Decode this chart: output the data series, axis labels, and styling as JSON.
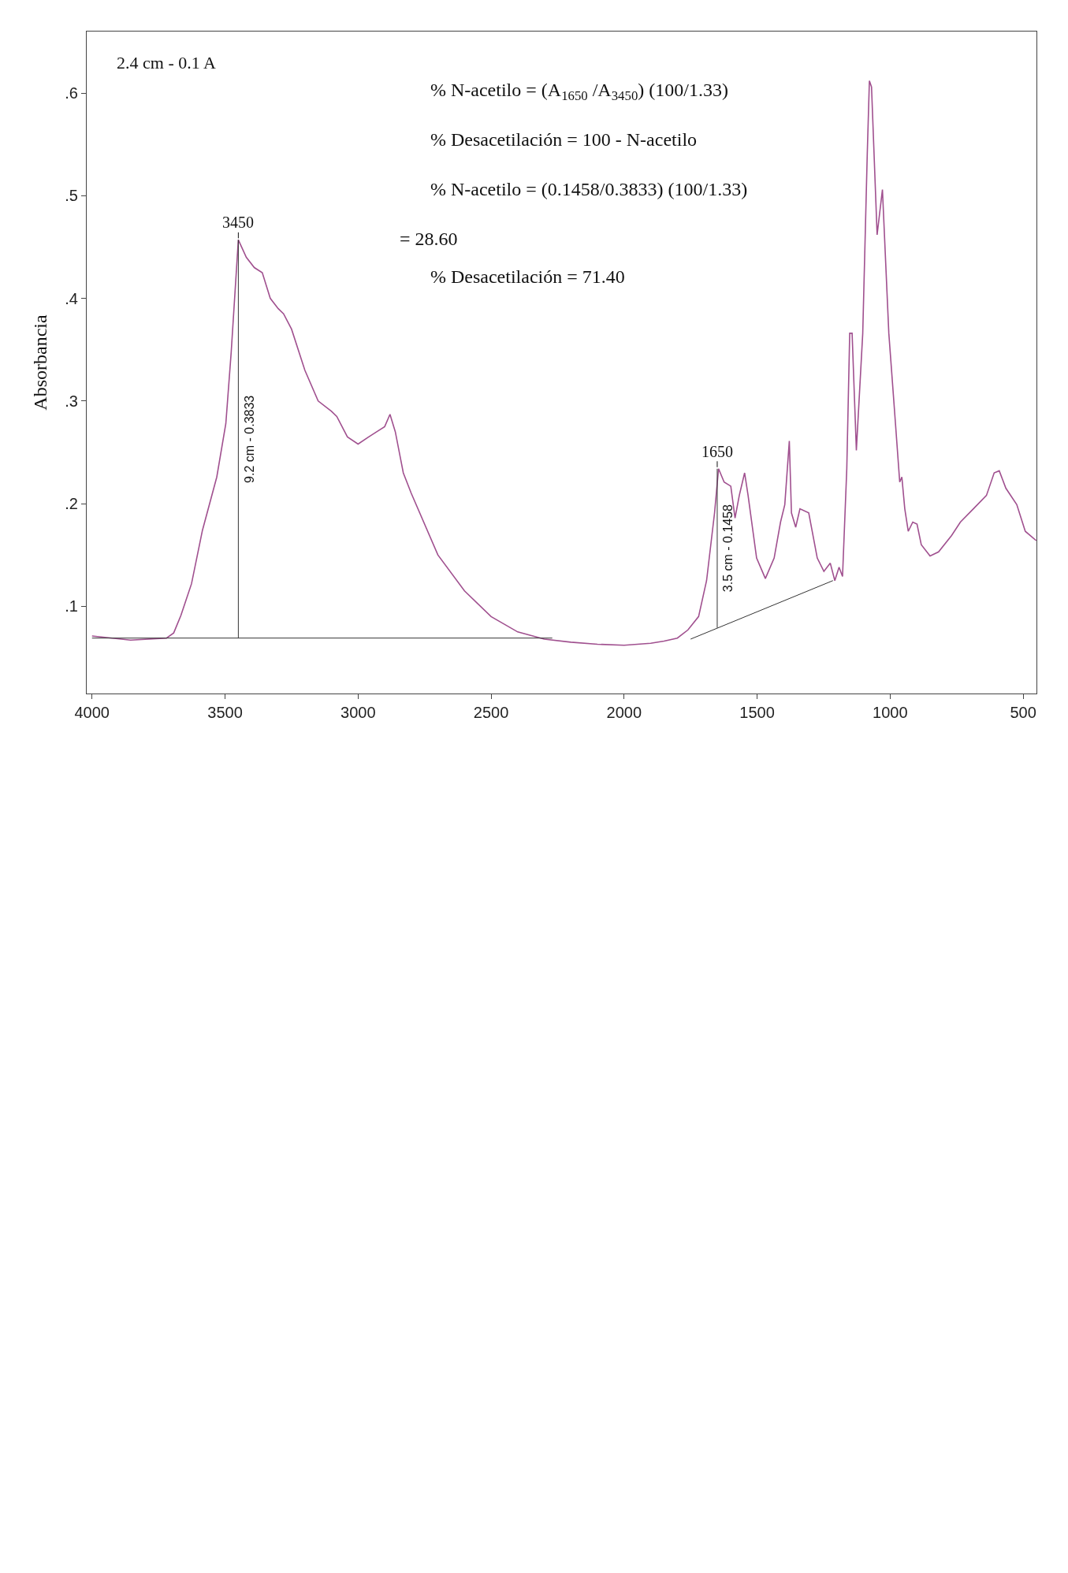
{
  "chart_data": {
    "type": "line",
    "ylabel": "Absorbancia",
    "xlim": [
      4020,
      450
    ],
    "ylim": [
      0.015,
      0.66
    ],
    "xticks": [
      500,
      1000,
      1500,
      2000,
      2500,
      3000,
      3500,
      4000
    ],
    "yticks": [
      {
        "value": 0.1,
        "label": ".1"
      },
      {
        "value": 0.2,
        "label": ".2"
      },
      {
        "value": 0.3,
        "label": ".3"
      },
      {
        "value": 0.4,
        "label": ".4"
      },
      {
        "value": 0.5,
        "label": ".5"
      },
      {
        "value": 0.6,
        "label": ".6"
      }
    ],
    "series": [
      {
        "color": "#a0508f",
        "x": [
          4000,
          3855,
          3720,
          3693,
          3666,
          3626,
          3585,
          3531,
          3497,
          3477,
          3450,
          3420,
          3390,
          3360,
          3330,
          3300,
          3280,
          3250,
          3200,
          3150,
          3100,
          3080,
          3040,
          3000,
          2960,
          2930,
          2900,
          2880,
          2860,
          2830,
          2800,
          2700,
          2600,
          2500,
          2400,
          2300,
          2200,
          2100,
          2000,
          1900,
          1850,
          1800,
          1760,
          1720,
          1690,
          1660,
          1645,
          1624,
          1599,
          1583,
          1567,
          1547,
          1534,
          1502,
          1469,
          1436,
          1412,
          1396,
          1379,
          1371,
          1355,
          1339,
          1306,
          1274,
          1249,
          1225,
          1208,
          1192,
          1179,
          1163,
          1152,
          1143,
          1127,
          1103,
          1086,
          1078,
          1070,
          1049,
          1029,
          1005,
          980,
          964,
          956,
          945,
          932,
          915,
          899,
          883,
          850,
          818,
          769,
          736,
          687,
          638,
          609,
          590,
          565,
          524,
          492,
          451
        ],
        "values": [
          0.071,
          0.067,
          0.069,
          0.074,
          0.091,
          0.122,
          0.174,
          0.226,
          0.278,
          0.347,
          0.457,
          0.44,
          0.43,
          0.425,
          0.4,
          0.39,
          0.385,
          0.37,
          0.33,
          0.3,
          0.29,
          0.285,
          0.265,
          0.258,
          0.265,
          0.27,
          0.275,
          0.287,
          0.27,
          0.23,
          0.21,
          0.15,
          0.115,
          0.09,
          0.075,
          0.068,
          0.065,
          0.063,
          0.062,
          0.064,
          0.066,
          0.069,
          0.077,
          0.09,
          0.125,
          0.191,
          0.234,
          0.221,
          0.217,
          0.186,
          0.208,
          0.23,
          0.208,
          0.147,
          0.127,
          0.147,
          0.182,
          0.199,
          0.261,
          0.191,
          0.177,
          0.195,
          0.191,
          0.147,
          0.134,
          0.142,
          0.125,
          0.138,
          0.129,
          0.234,
          0.366,
          0.366,
          0.252,
          0.366,
          0.541,
          0.612,
          0.606,
          0.462,
          0.506,
          0.366,
          0.278,
          0.221,
          0.226,
          0.195,
          0.173,
          0.182,
          0.18,
          0.16,
          0.149,
          0.153,
          0.169,
          0.182,
          0.195,
          0.208,
          0.23,
          0.232,
          0.215,
          0.199,
          0.173,
          0.164
        ]
      },
      {
        "color": "#333333",
        "x": [
          4000,
          2270
        ],
        "values": [
          0.069,
          0.069
        ]
      },
      {
        "color": "#333333",
        "x": [
          3450,
          3450
        ],
        "values": [
          0.069,
          0.457
        ]
      },
      {
        "color": "#333333",
        "x": [
          1750,
          1215
        ],
        "values": [
          0.068,
          0.125
        ]
      },
      {
        "color": "#333333",
        "x": [
          1650,
          1650
        ],
        "values": [
          0.079,
          0.234
        ]
      }
    ],
    "annotations": [
      "% N-acetilo = (A$_{1650}$ /A$_{3450}$) (100/1.33)",
      "% Desacetilación = 100 - N-acetilo",
      "% N-acetilo = (0.1458/0.3833) (100/1.33)",
      "= 28.60",
      "% Desacetilación = 71.40",
      "9.2 cm - 0.3833",
      "3.5 cm - 0.1458",
      "2.4 cm - 0.1 A",
      {
        "text": "3450",
        "x": 3450,
        "y": 0.457
      },
      {
        "text": "1650",
        "x": 1650,
        "y": 0.234
      }
    ]
  }
}
